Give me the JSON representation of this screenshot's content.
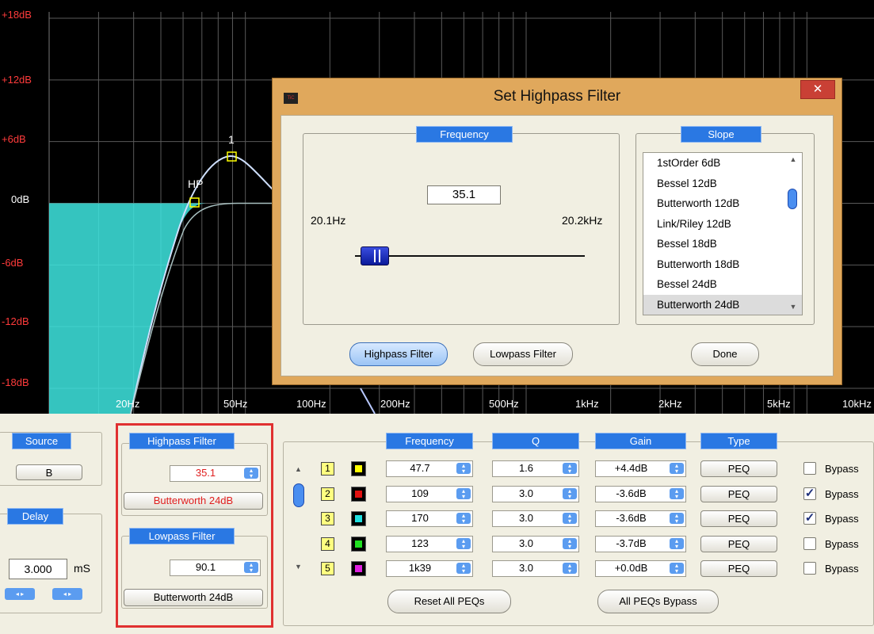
{
  "graph": {
    "y_labels": [
      "+18dB",
      "+12dB",
      "+6dB",
      "0dB",
      "-6dB",
      "-12dB",
      "-18dB"
    ],
    "x_labels": [
      "20Hz",
      "50Hz",
      "100Hz",
      "200Hz",
      "500Hz",
      "1kHz",
      "2kHz",
      "5kHz",
      "10kHz"
    ],
    "markers": {
      "hp": "HP",
      "peq1": "1"
    },
    "colors": {
      "background": "#000000",
      "grid": "#555555",
      "fill": "#3ee6e0",
      "curve": "#d6e4ff"
    }
  },
  "dialog": {
    "title": "Set Highpass Filter",
    "close_icon": "close-icon",
    "frequency_tag": "Frequency",
    "frequency_value": "35.1",
    "range_min": "20.1Hz",
    "range_max": "20.2kHz",
    "slider_position": 0.1,
    "slope_tag": "Slope",
    "slope_options": [
      "1stOrder 6dB",
      "Bessel 12dB",
      "Butterworth 12dB",
      "Link/Riley 12dB",
      "Bessel 18dB",
      "Butterworth 18dB",
      "Bessel 24dB",
      "Butterworth 24dB"
    ],
    "slope_selected": "Butterworth 24dB",
    "highpass_button": "Highpass Filter",
    "lowpass_button": "Lowpass Filter",
    "done_button": "Done"
  },
  "source": {
    "tag": "Source",
    "value": "B"
  },
  "delay": {
    "tag": "Delay",
    "value": "3.000",
    "unit": "mS"
  },
  "highpass": {
    "tag": "Highpass Filter",
    "value": "35.1",
    "slope": "Butterworth 24dB"
  },
  "lowpass": {
    "tag": "Lowpass Filter",
    "value": "90.1",
    "slope": "Butterworth 24dB"
  },
  "peq": {
    "headers": {
      "frequency": "Frequency",
      "q": "Q",
      "gain": "Gain",
      "type": "Type"
    },
    "bypass_label": "Bypass",
    "rows": [
      {
        "num": "1",
        "color": "#ffff00",
        "frequency": "47.7",
        "q": "1.6",
        "gain": "+4.4dB",
        "type": "PEQ",
        "bypass": false
      },
      {
        "num": "2",
        "color": "#e01010",
        "frequency": "109",
        "q": "3.0",
        "gain": "-3.6dB",
        "type": "PEQ",
        "bypass": true
      },
      {
        "num": "3",
        "color": "#20e0e0",
        "frequency": "170",
        "q": "3.0",
        "gain": "-3.6dB",
        "type": "PEQ",
        "bypass": true
      },
      {
        "num": "4",
        "color": "#20e020",
        "frequency": "123",
        "q": "3.0",
        "gain": "-3.7dB",
        "type": "PEQ",
        "bypass": false
      },
      {
        "num": "5",
        "color": "#e020e0",
        "frequency": "1k39",
        "q": "3.0",
        "gain": "+0.0dB",
        "type": "PEQ",
        "bypass": false
      }
    ],
    "reset_button": "Reset All PEQs",
    "bypass_all_button": "All PEQs Bypass"
  },
  "highlight_color": "#e03030"
}
